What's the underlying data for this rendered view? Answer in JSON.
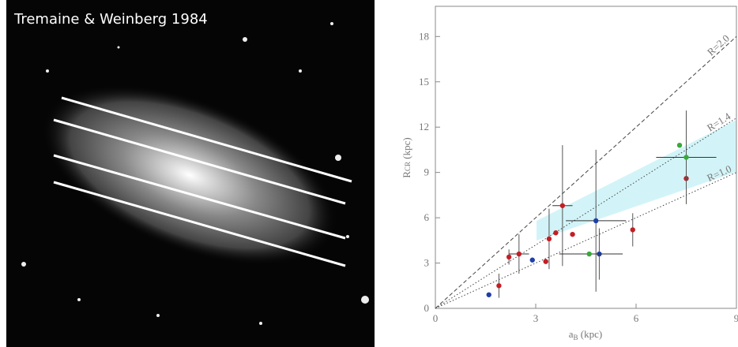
{
  "image": {
    "caption": "Tremaine & Weinberg 1984"
  },
  "chart_data": {
    "type": "scatter",
    "x_label": {
      "main": "a",
      "sub": "B",
      "unit": "(kpc)"
    },
    "y_label": {
      "main": "R",
      "sub": "CR",
      "unit": "(kpc)"
    },
    "xlim": [
      0,
      9
    ],
    "xticks": [
      0,
      3,
      6,
      9
    ],
    "ylim": [
      0,
      20
    ],
    "yticks": [
      0,
      3,
      6,
      9,
      12,
      15,
      18
    ],
    "ratio_lines": [
      {
        "label": "R=2.0",
        "slope": 2.0,
        "style": "dashed"
      },
      {
        "label": "R=1.4",
        "slope": 1.4,
        "style": "dotted"
      },
      {
        "label": "R=1.0",
        "slope": 1.0,
        "style": "dotted"
      }
    ],
    "series": [
      {
        "name": "red",
        "color": "#c41e24",
        "x": [
          1.9,
          2.2,
          2.5,
          3.3,
          3.4,
          3.6,
          3.8,
          4.1,
          5.9,
          7.5
        ],
        "values": [
          1.5,
          3.4,
          3.6,
          3.1,
          4.6,
          5.0,
          6.8,
          4.9,
          5.2,
          8.6
        ],
        "yerr": [
          0.8,
          0.5,
          1.3,
          null,
          2.0,
          null,
          4.0,
          null,
          1.1,
          null
        ],
        "xerr": [
          null,
          null,
          0.3,
          null,
          null,
          null,
          0.3,
          null,
          null,
          null
        ]
      },
      {
        "name": "blue",
        "color": "#1f3fa8",
        "x": [
          1.6,
          2.9,
          4.8,
          4.9
        ],
        "values": [
          0.9,
          3.2,
          5.8,
          3.6
        ],
        "yerr": [
          null,
          null,
          4.7,
          1.7
        ],
        "xerr": [
          null,
          null,
          0.9,
          0.7
        ]
      },
      {
        "name": "green",
        "color": "#3aa83a",
        "x": [
          4.6,
          7.3,
          7.5
        ],
        "values": [
          3.6,
          10.8,
          10.0
        ],
        "yerr": [
          null,
          null,
          3.1
        ],
        "xerr": [
          0.9,
          null,
          0.9
        ]
      }
    ]
  }
}
